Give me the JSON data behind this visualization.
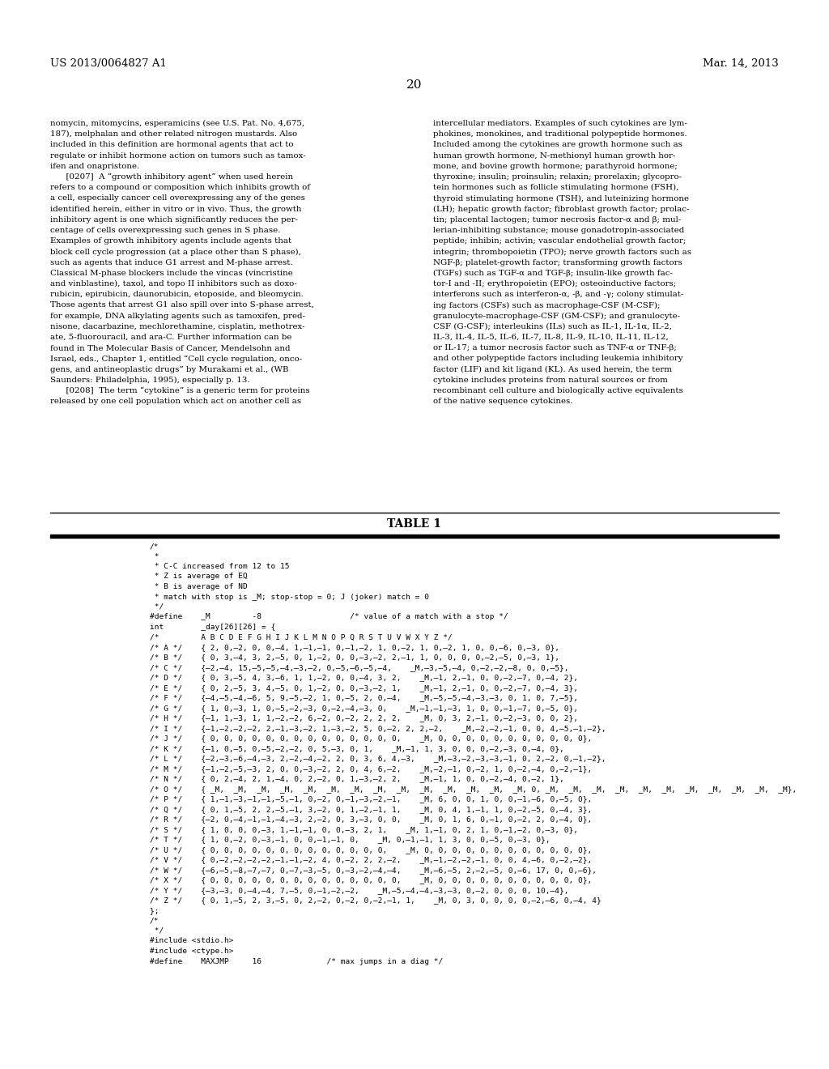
{
  "header_left": "US 2013/0064827 A1",
  "header_right": "Mar. 14, 2013",
  "page_number": "20",
  "background_color": "#ffffff",
  "text_color": "#000000",
  "table_title": "TABLE 1",
  "table_lines": [
    "/*",
    " *",
    " * C-C increased from 12 to 15",
    " * Z is average of EQ",
    " * B is average of ND",
    " * match with stop is _M; stop-stop = 0; J (joker) match = 0",
    " */",
    "#define    _M         -8                   /* value of a match with a stop */",
    "int        _day[26][26] = {",
    "/*         A B C D E F G H I J K L M N O P Q R S T U V W X Y Z */",
    "/* A */    { 2, 0,–2, 0, 0,–4, 1,–1,–1, 0,–1,–2, 1, 0,–2, 1, 0,–2, 1, 0, 0,–6, 0,–3, 0},",
    "/* B */    { 0, 3,–4, 3, 2,–5, 0, 1,–2, 0, 0,–3,–2, 2,–1, 1, 0, 0, 0, 0,–2,–5, 0,–3, 1},",
    "/* C */    {–2,–4, 15,–5,–5,–4,–3,–2, 0,–5,–6,–5,–4,    _M,–3,–5,–4, 0,–2,–2,–8, 0, 0,–5},",
    "/* D */    { 0, 3,–5, 4, 3,–6, 1, 1,–2, 0, 0,–4, 3, 2,    _M,–1, 2,–1, 0, 0,–2,–7, 0,–4, 2},",
    "/* E */    { 0, 2,–5, 3, 4,–5, 0, 1,–2, 0, 0,–3,–2, 1,    _M,–1, 2,–1, 0, 0,–2,–7, 0,–4, 3},",
    "/* F */    {–4,–5,–4,–6, 5, 9,–5,–2, 1, 0,–5, 2, 0,–4,    _M,–5,–5,–4,–3,–3, 0, 1, 0, 7,–5},",
    "/* G */    { 1, 0,–3, 1, 0,–5,–2,–3, 0,–2,–4,–3, 0,    _M,–1,–1,–3, 1, 0, 0,–1,–7, 0,–5, 0},",
    "/* H */    {–1, 1,–3, 1, 1,–2,–2, 6,–2, 0,–2, 2, 2, 2,    _M, 0, 3, 2,–1, 0,–2,–3, 0, 0, 2},",
    "/* I */    {–1,–2,–2,–2, 2,–1,–3,–2, 1,–3,–2, 5, 0,–2, 2, 2,–2,    _M,–2,–2,–1, 0, 0, 4,–5,–1,–2},",
    "/* J */    { 0, 0, 0, 0, 0, 0, 0, 0, 0, 0, 0, 0, 0, 0,    _M, 0, 0, 0, 0, 0, 0, 0, 0, 0, 0, 0},",
    "/* K */    {–1, 0,–5, 0,–5,–2,–2, 0, 5,–3, 0, 1,    _M,–1, 1, 3, 0, 0, 0,–2,–3, 0,–4, 0},",
    "/* L */    {–2,–3,–6,–4,–3, 2,–2,–4,–2, 2, 0, 3, 6, 4,–3,    _M,–3,–2,–3,–3,–1, 0, 2,–2, 0,–1,–2},",
    "/* M */    {–1,–2,–5,–3, 2, 0, 0,–3,–2, 2, 0, 4, 6,–2,    _M,–2,–1, 0,–2, 1, 0,–2,–4, 0,–2,–1},",
    "/* N */    { 0, 2,–4, 2, 1,–4, 0, 2,–2, 0, 1,–3,–2, 2,    _M,–1, 1, 0, 0,–2,–4, 0,–2, 1},",
    "/* O */    { _M,  _M,  _M,  _M,  _M,  _M,  _M,  _M,  _M,  _M,  _M,  _M,  _M,  _M, 0, _M,  _M,  _M,  _M,  _M,  _M,  _M,  _M,  _M,  _M,  _M},",
    "/* P */    { 1,–1,–3,–1,–1,–5,–1, 0,–2, 0,–1,–3,–2,–1,    _M, 6, 0, 0, 1, 0, 0,–1,–6, 0,–5, 0},",
    "/* Q */    { 0, 1,–5, 2, 2,–5,–1, 3,–2, 0, 1,–2,–1, 1,    _M, 0, 4, 1,–1, 1, 0,–2,–5, 0,–4, 3},",
    "/* R */    {–2, 0,–4,–1,–1,–4,–3, 2,–2, 0, 3,–3, 0, 0,    _M, 0, 1, 6, 0,–1, 0,–2, 2, 0,–4, 0},",
    "/* S */    { 1, 0, 0, 0,–3, 1,–1,–1, 0, 0,–3, 2, 1,    _M, 1,–1, 0, 2, 1, 0,–1,–2, 0,–3, 0},",
    "/* T */    { 1, 0,–2, 0,–3,–1, 0, 0,–1,–1, 0,    _M, 0,–1,–1, 1, 3, 0, 0,–5, 0,–3, 0},",
    "/* U */    { 0, 0, 0, 0, 0, 0, 0, 0, 0, 0, 0, 0, 0,    _M, 0, 0, 0, 0, 0, 0, 0, 0, 0, 0, 0, 0},",
    "/* V */    { 0,–2,–2,–2,–2,–1,–1,–2, 4, 0,–2, 2, 2,–2,    _M,–1,–2,–2,–1, 0, 0, 4,–6, 0,–2,–2},",
    "/* W */    {–6,–5,–8,–7,–7, 0,–7,–3,–5, 0,–3,–2,–4,–4,    _M,–6,–5, 2,–2,–5, 0,–6, 17, 0, 0,–6},",
    "/* X */    { 0, 0, 0, 0, 0, 0, 0, 0, 0, 0, 0, 0, 0, 0,    _M, 0, 0, 0, 0, 0, 0, 0, 0, 0, 0, 0},",
    "/* Y */    {–3,–3, 0,–4,–4, 7,–5, 0,–1,–2,–2,    _M,–5,–4,–4,–3,–3, 0,–2, 0, 0, 0, 10,–4},",
    "/* Z */    { 0, 1,–5, 2, 3,–5, 0, 2,–2, 0,–2, 0,–2,–1, 1,    _M, 0, 3, 0, 0, 0, 0,–2,–6, 0,–4, 4}",
    "};",
    "/*",
    " */",
    "#include <stdio.h>",
    "#include <ctype.h>",
    "#define    MAXJMP     16              /* max jumps in a diag */"
  ]
}
